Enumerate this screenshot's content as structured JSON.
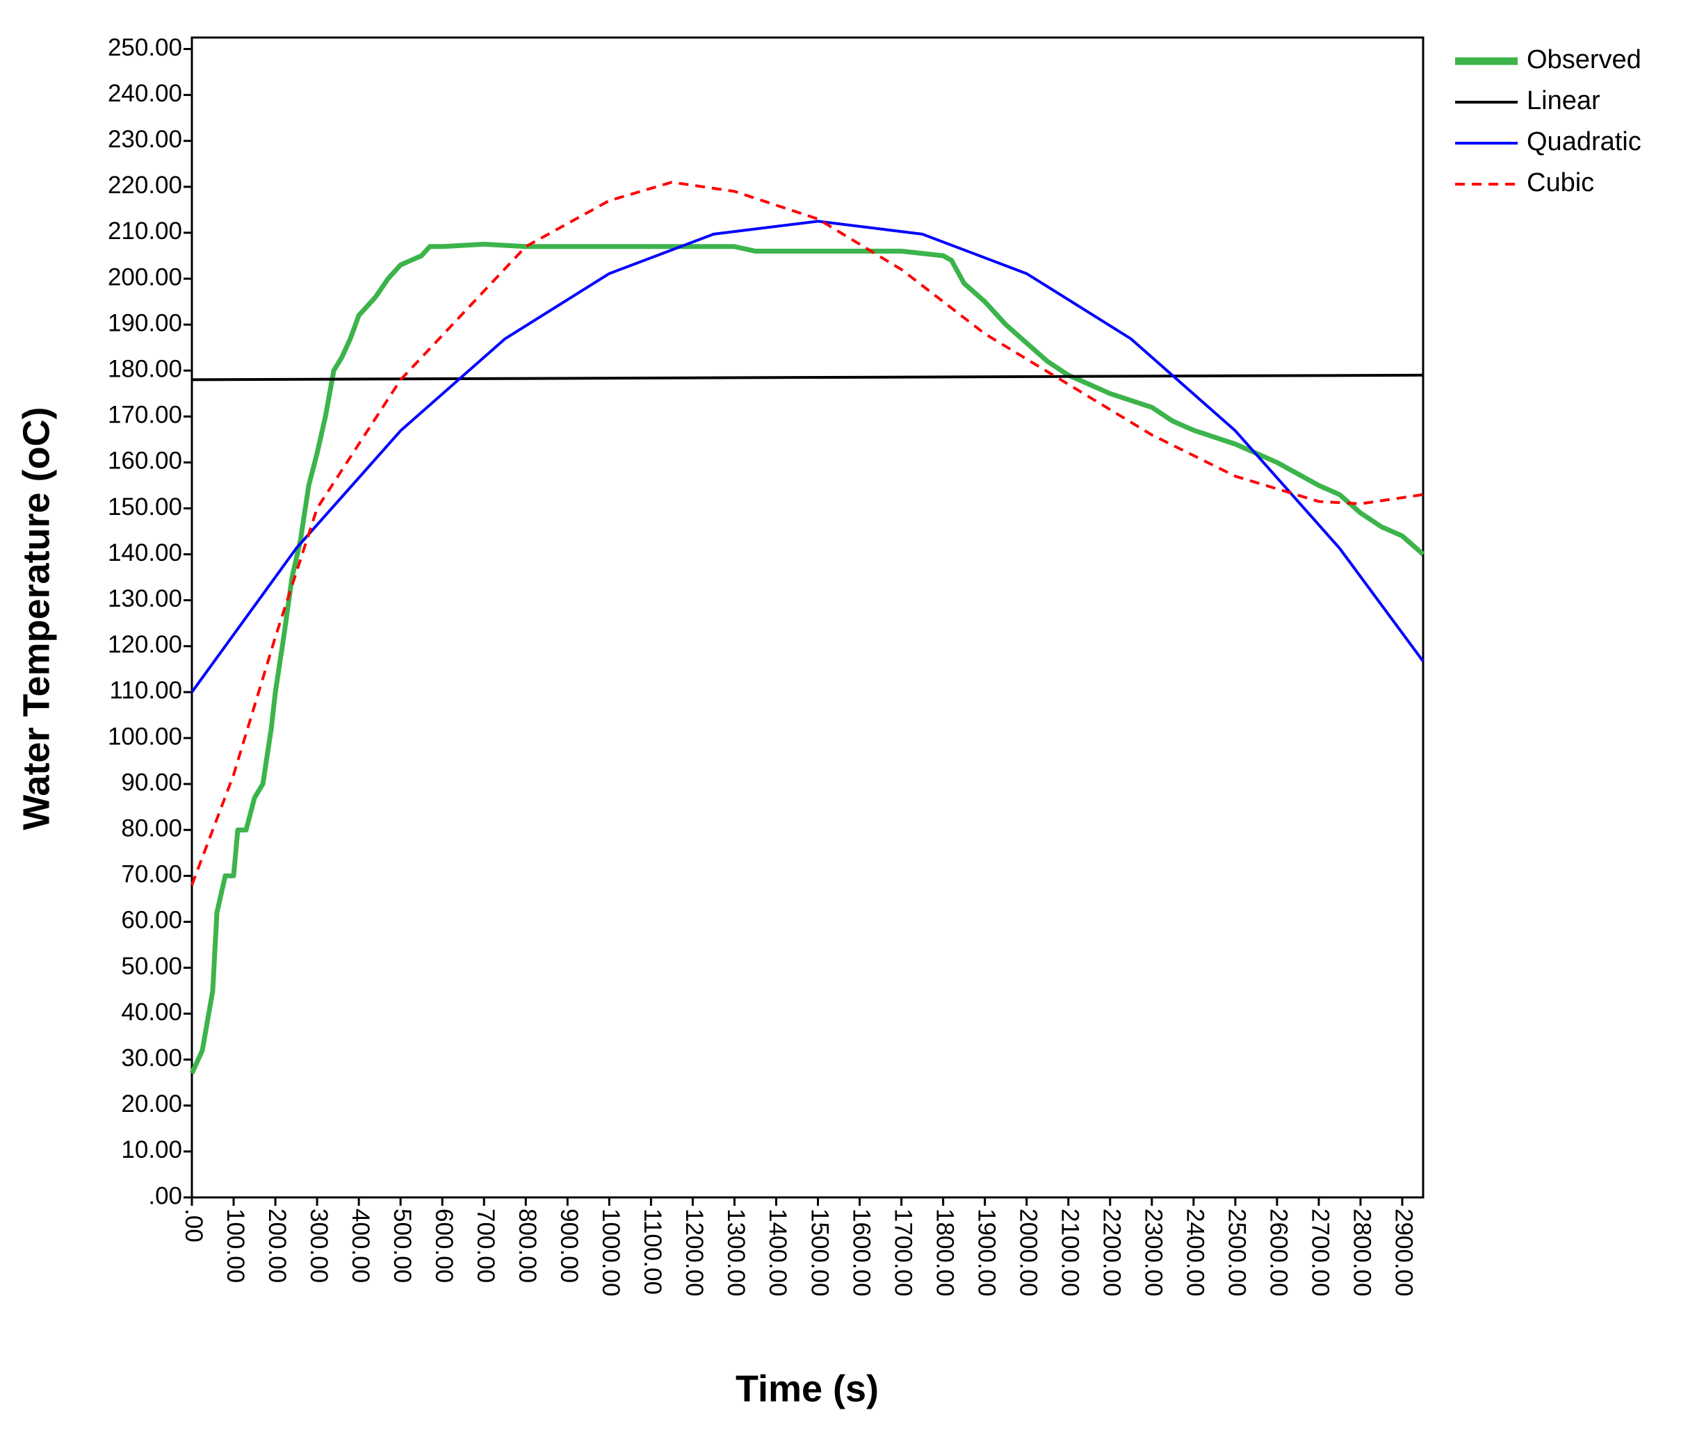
{
  "chart_data": {
    "type": "line",
    "x_label": "Time (s)",
    "y_label": "Water Temperature (oC)",
    "xlim": [
      0,
      2950
    ],
    "ylim": [
      0,
      252.5
    ],
    "xticks": [
      {
        "value": 0,
        "label": ".00"
      },
      {
        "value": 100,
        "label": "100.00"
      },
      {
        "value": 200,
        "label": "200.00"
      },
      {
        "value": 300,
        "label": "300.00"
      },
      {
        "value": 400,
        "label": "400.00"
      },
      {
        "value": 500,
        "label": "500.00"
      },
      {
        "value": 600,
        "label": "600.00"
      },
      {
        "value": 700,
        "label": "700.00"
      },
      {
        "value": 800,
        "label": "800.00"
      },
      {
        "value": 900,
        "label": "900.00"
      },
      {
        "value": 1000,
        "label": "1000.00"
      },
      {
        "value": 1100,
        "label": "1100.00"
      },
      {
        "value": 1200,
        "label": "1200.00"
      },
      {
        "value": 1300,
        "label": "1300.00"
      },
      {
        "value": 1400,
        "label": "1400.00"
      },
      {
        "value": 1500,
        "label": "1500.00"
      },
      {
        "value": 1600,
        "label": "1600.00"
      },
      {
        "value": 1700,
        "label": "1700.00"
      },
      {
        "value": 1800,
        "label": "1800.00"
      },
      {
        "value": 1900,
        "label": "1900.00"
      },
      {
        "value": 2000,
        "label": "2000.00"
      },
      {
        "value": 2100,
        "label": "2100.00"
      },
      {
        "value": 2200,
        "label": "2200.00"
      },
      {
        "value": 2300,
        "label": "2300.00"
      },
      {
        "value": 2400,
        "label": "2400.00"
      },
      {
        "value": 2500,
        "label": "2500.00"
      },
      {
        "value": 2600,
        "label": "2600.00"
      },
      {
        "value": 2700,
        "label": "2700.00"
      },
      {
        "value": 2800,
        "label": "2800.00"
      },
      {
        "value": 2900,
        "label": "2900.00"
      }
    ],
    "yticks": [
      {
        "value": 0,
        "label": ".00"
      },
      {
        "value": 10,
        "label": "10.00"
      },
      {
        "value": 20,
        "label": "20.00"
      },
      {
        "value": 30,
        "label": "30.00"
      },
      {
        "value": 40,
        "label": "40.00"
      },
      {
        "value": 50,
        "label": "50.00"
      },
      {
        "value": 60,
        "label": "60.00"
      },
      {
        "value": 70,
        "label": "70.00"
      },
      {
        "value": 80,
        "label": "80.00"
      },
      {
        "value": 90,
        "label": "90.00"
      },
      {
        "value": 100,
        "label": "100.00"
      },
      {
        "value": 110,
        "label": "110.00"
      },
      {
        "value": 120,
        "label": "120.00"
      },
      {
        "value": 130,
        "label": "130.00"
      },
      {
        "value": 140,
        "label": "140.00"
      },
      {
        "value": 150,
        "label": "150.00"
      },
      {
        "value": 160,
        "label": "160.00"
      },
      {
        "value": 170,
        "label": "170.00"
      },
      {
        "value": 180,
        "label": "180.00"
      },
      {
        "value": 190,
        "label": "190.00"
      },
      {
        "value": 200,
        "label": "200.00"
      },
      {
        "value": 210,
        "label": "210.00"
      },
      {
        "value": 220,
        "label": "220.00"
      },
      {
        "value": 230,
        "label": "230.00"
      },
      {
        "value": 240,
        "label": "240.00"
      },
      {
        "value": 250,
        "label": "250.00"
      }
    ],
    "grid": false,
    "legend": "outside-top-right",
    "series": [
      {
        "name": "Observed",
        "color": "#3cb44b",
        "line_style": "solid",
        "x": [
          0,
          25,
          50,
          60,
          80,
          100,
          110,
          130,
          150,
          170,
          190,
          200,
          220,
          240,
          260,
          280,
          300,
          320,
          340,
          360,
          380,
          400,
          440,
          470,
          500,
          550,
          570,
          600,
          700,
          800,
          900,
          1000,
          1100,
          1200,
          1300,
          1350,
          1400,
          1500,
          1600,
          1700,
          1800,
          1820,
          1850,
          1900,
          1950,
          2000,
          2050,
          2100,
          2150,
          2200,
          2300,
          2350,
          2400,
          2500,
          2600,
          2700,
          2750,
          2800,
          2850,
          2900,
          2950
        ],
        "values": [
          27,
          32,
          45,
          62,
          70,
          70,
          80,
          80,
          87,
          90,
          102,
          110,
          122,
          135,
          143,
          155,
          162,
          170,
          180,
          183,
          187,
          192,
          196,
          200,
          203,
          205,
          207,
          207,
          207.5,
          207,
          207,
          207,
          207,
          207,
          207,
          206,
          206,
          206,
          206,
          206,
          205,
          204,
          199,
          195,
          190,
          186,
          182,
          179,
          177,
          175,
          172,
          169,
          167,
          164,
          160,
          155,
          153,
          149,
          146,
          144,
          140
        ]
      },
      {
        "name": "Linear",
        "color": "#000000",
        "line_style": "solid",
        "x": [
          0,
          2950
        ],
        "values": [
          178,
          179
        ]
      },
      {
        "name": "Quadratic",
        "color": "#0000ff",
        "line_style": "solid",
        "x": [
          0,
          250,
          500,
          750,
          1000,
          1250,
          1500,
          1750,
          2000,
          2250,
          2500,
          2750,
          2950
        ],
        "values": [
          110,
          141.3,
          166.9,
          186.9,
          201.1,
          209.7,
          212.5,
          209.7,
          201.1,
          186.9,
          166.9,
          141.3,
          116.7
        ]
      },
      {
        "name": "Cubic",
        "color": "#ff0000",
        "line_style": "dashed",
        "x": [
          0,
          100,
          200,
          300,
          500,
          800,
          1000,
          1150,
          1300,
          1500,
          1700,
          1900,
          2100,
          2300,
          2500,
          2700,
          2800,
          2950
        ],
        "values": [
          68,
          92,
          122,
          150,
          178,
          207,
          217,
          221,
          219,
          213,
          202,
          188,
          177,
          166,
          157,
          151.5,
          151,
          153
        ]
      }
    ]
  }
}
